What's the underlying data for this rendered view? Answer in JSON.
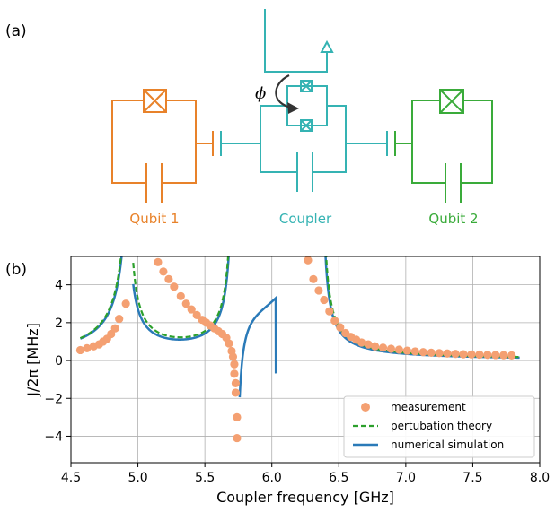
{
  "panel_a": {
    "label": "(a)",
    "phi_symbol": "ϕ",
    "qubit1_label": "Qubit 1",
    "coupler_label": "Coupler",
    "qubit2_label": "Qubit 2",
    "colors": {
      "qubit1": "#e8822a",
      "coupler": "#35b3b3",
      "qubit2": "#3aab3a",
      "arrow": "#333333"
    }
  },
  "panel_b": {
    "label": "(b)"
  },
  "chart_data": {
    "type": "scatter",
    "xlabel": "Coupler frequency [GHz]",
    "ylabel": "J/2π [MHz]",
    "xlim": [
      4.5,
      8.0
    ],
    "ylim": [
      -5.4,
      5.5
    ],
    "xticks": [
      4.5,
      5.0,
      5.5,
      6.0,
      6.5,
      7.0,
      7.5,
      8.0
    ],
    "xtick_labels": [
      "4.5",
      "5.0",
      "5.5",
      "6.0",
      "6.5",
      "7.0",
      "7.5",
      "8.0"
    ],
    "yticks": [
      -4,
      -2,
      0,
      2,
      4
    ],
    "ytick_labels": [
      "−4",
      "−2",
      "0",
      "2",
      "4"
    ],
    "grid": true,
    "legend_position": "bottom-right",
    "series": [
      {
        "name": "measurement",
        "kind": "scatter",
        "color": "#f4a072",
        "x": [
          4.57,
          4.62,
          4.67,
          4.71,
          4.74,
          4.77,
          4.8,
          4.83,
          4.86,
          4.91,
          5.15,
          5.19,
          5.23,
          5.27,
          5.32,
          5.36,
          5.4,
          5.44,
          5.48,
          5.51,
          5.54,
          5.57,
          5.6,
          5.63,
          5.66,
          5.68,
          5.7,
          5.71,
          5.72,
          5.72,
          5.73,
          5.73,
          5.74,
          5.74,
          6.27,
          6.31,
          6.35,
          6.39,
          6.43,
          6.47,
          6.51,
          6.55,
          6.59,
          6.63,
          6.67,
          6.72,
          6.77,
          6.83,
          6.89,
          6.95,
          7.01,
          7.07,
          7.13,
          7.19,
          7.25,
          7.31,
          7.37,
          7.43,
          7.49,
          7.55,
          7.61,
          7.67,
          7.73,
          7.79
        ],
        "y": [
          0.55,
          0.65,
          0.75,
          0.85,
          1.0,
          1.15,
          1.4,
          1.7,
          2.2,
          3.0,
          5.2,
          4.7,
          4.3,
          3.9,
          3.4,
          3.0,
          2.7,
          2.4,
          2.15,
          2.0,
          1.85,
          1.7,
          1.55,
          1.4,
          1.2,
          0.9,
          0.5,
          0.2,
          -0.2,
          -0.7,
          -1.2,
          -1.7,
          -3.0,
          -4.1,
          5.3,
          4.3,
          3.7,
          3.2,
          2.6,
          2.1,
          1.75,
          1.45,
          1.25,
          1.1,
          0.95,
          0.85,
          0.75,
          0.68,
          0.62,
          0.57,
          0.52,
          0.48,
          0.44,
          0.41,
          0.39,
          0.37,
          0.35,
          0.33,
          0.32,
          0.31,
          0.3,
          0.29,
          0.28,
          0.27
        ]
      },
      {
        "name": "pertubation theory",
        "kind": "line",
        "style": "dashed",
        "color": "#2ca02c"
      },
      {
        "name": "numerical simulation",
        "kind": "line",
        "style": "solid",
        "color": "#2a7ab8"
      }
    ]
  }
}
